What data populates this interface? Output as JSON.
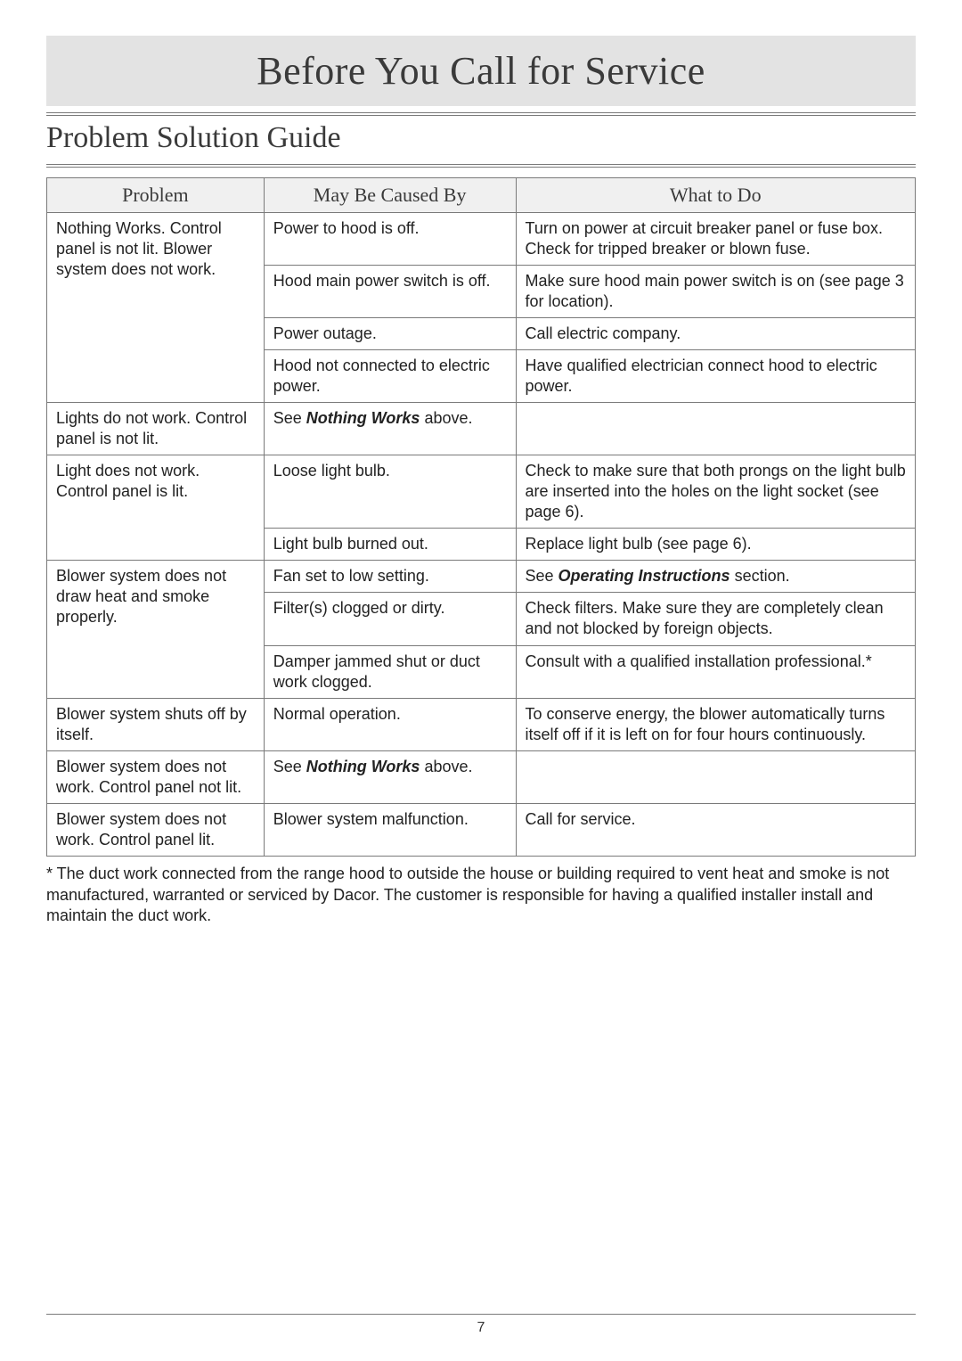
{
  "title": "Before You Call for Service",
  "subtitle": "Problem Solution Guide",
  "columns": [
    "Problem",
    "May Be Caused By",
    "What to Do"
  ],
  "groups": [
    {
      "problem": "Nothing Works. Control panel is not lit. Blower system does not work.",
      "rows": [
        {
          "cause": "Power to hood is off.",
          "todo": "Turn on power at circuit breaker panel or fuse box. Check for tripped breaker or blown fuse."
        },
        {
          "cause": "Hood main power switch is off.",
          "todo": "Make sure hood main power switch is on (see page 3 for location)."
        },
        {
          "cause": "Power outage.",
          "todo": "Call electric company."
        },
        {
          "cause": "Hood not connected to electric power.",
          "todo": "Have qualified electrician connect hood to electric power."
        }
      ]
    },
    {
      "problem": "Lights do not work. Control panel is not lit.",
      "rows": [
        {
          "cause_html": "See <span class=\"bi\">Nothing Works</span> above.",
          "todo": ""
        }
      ]
    },
    {
      "problem": "Light does not work. Control panel is lit.",
      "rows": [
        {
          "cause": "Loose light bulb.",
          "todo": "Check to make sure that both prongs on the light bulb are inserted into the holes on the light socket (see page 6)."
        },
        {
          "cause": "Light bulb burned out.",
          "todo": "Replace light bulb (see page 6)."
        }
      ]
    },
    {
      "problem": "Blower system does not draw heat and smoke properly.",
      "rows": [
        {
          "cause": "Fan set to low setting.",
          "todo_html": "See <span class=\"bi\">Operating Instructions</span> section."
        },
        {
          "cause": "Filter(s) clogged or dirty.",
          "todo": "Check filters. Make sure they are completely clean and not blocked by foreign objects."
        },
        {
          "cause": "Damper jammed shut or duct work clogged.",
          "todo": "Consult with a qualified installation professional.*"
        }
      ]
    },
    {
      "problem": "Blower system shuts off by itself.",
      "rows": [
        {
          "cause": "Normal operation.",
          "todo": "To conserve energy, the blower automatically turns itself off if it is left on for four hours continuously."
        }
      ]
    },
    {
      "problem": "Blower system does not work. Control panel not lit.",
      "rows": [
        {
          "cause_html": "See <span class=\"bi\">Nothing Works</span> above.",
          "todo": ""
        }
      ]
    },
    {
      "problem": "Blower system does not work. Control panel lit.",
      "rows": [
        {
          "cause": "Blower system malfunction.",
          "todo": "Call for service."
        }
      ]
    }
  ],
  "footnote": "* The duct work connected from the range hood to outside the house or building required to vent heat and smoke is not manufactured, warranted or serviced by Dacor. The customer is responsible for having a qualified installer install and maintain the duct work.",
  "page_number": "7",
  "colors": {
    "title_bg": "#e3e3e3",
    "header_bg": "#f0f0f0",
    "border": "#7a7a7a",
    "text": "#222222",
    "heading_text": "#3a3a3a"
  }
}
